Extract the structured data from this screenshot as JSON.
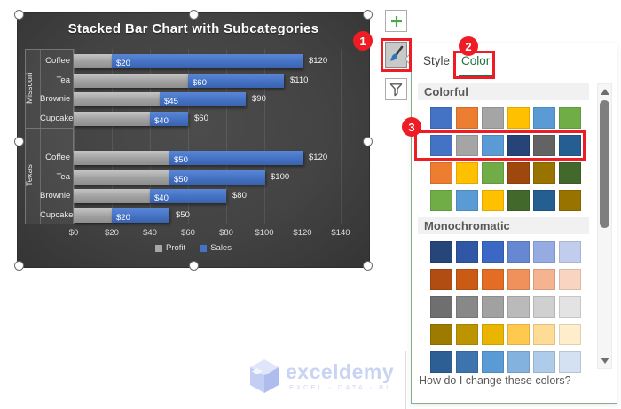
{
  "chart": {
    "title": "Stacked Bar Chart with Subcategories",
    "x_ticks": [
      "$0",
      "$20",
      "$40",
      "$60",
      "$80",
      "$100",
      "$120",
      "$140"
    ],
    "groups": [
      {
        "state": "Missouri",
        "rows": [
          {
            "item": "Coffee",
            "profit": 20,
            "sales": 100,
            "total": 120,
            "segment_label": "$20",
            "total_label": "$120"
          },
          {
            "item": "Tea",
            "profit": 60,
            "sales": 50,
            "total": 110,
            "segment_label": "$60",
            "total_label": "$110"
          },
          {
            "item": "Brownie",
            "profit": 45,
            "sales": 45,
            "total": 90,
            "segment_label": "$45",
            "total_label": "$90"
          },
          {
            "item": "Cupcake",
            "profit": 40,
            "sales": 20,
            "total": 60,
            "segment_label": "$40",
            "total_label": "$60"
          }
        ]
      },
      {
        "state": "Texas",
        "rows": [
          {
            "item": "Coffee",
            "profit": 50,
            "sales": 70,
            "total": 120,
            "segment_label": "$50",
            "total_label": "$120"
          },
          {
            "item": "Tea",
            "profit": 50,
            "sales": 50,
            "total": 100,
            "segment_label": "$50",
            "total_label": "$100"
          },
          {
            "item": "Brownie",
            "profit": 40,
            "sales": 40,
            "total": 80,
            "segment_label": "$40",
            "total_label": "$80"
          },
          {
            "item": "Cupcake",
            "profit": 20,
            "sales": 30,
            "total": 50,
            "segment_label": "$20",
            "total_label": "$50"
          }
        ]
      }
    ],
    "legend": [
      {
        "name": "Profit",
        "color": "#A6A6A6"
      },
      {
        "name": "Sales",
        "color": "#4472C4"
      }
    ]
  },
  "chart_data": {
    "type": "bar",
    "orientation": "horizontal",
    "stacked": true,
    "title": "Stacked Bar Chart with Subcategories",
    "categories": [
      "Missouri Coffee",
      "Missouri Tea",
      "Missouri Brownie",
      "Missouri Cupcake",
      "Texas Coffee",
      "Texas Tea",
      "Texas Brownie",
      "Texas Cupcake"
    ],
    "series": [
      {
        "name": "Profit",
        "color": "#A6A6A6",
        "values": [
          20,
          60,
          45,
          40,
          50,
          50,
          40,
          20
        ]
      },
      {
        "name": "Sales",
        "color": "#4472C4",
        "values": [
          100,
          50,
          45,
          20,
          70,
          50,
          40,
          30
        ]
      }
    ],
    "totals": [
      120,
      110,
      90,
      60,
      120,
      100,
      80,
      50
    ],
    "xlim": [
      0,
      140
    ],
    "x_tick_labels": [
      "$0",
      "$20",
      "$40",
      "$60",
      "$80",
      "$100",
      "$120",
      "$140"
    ],
    "legend_position": "bottom",
    "grid": "vertical"
  },
  "panel": {
    "tabs": [
      {
        "label": "Style",
        "active": false
      },
      {
        "label": "Color",
        "active": true
      }
    ],
    "sections": [
      {
        "title": "Colorful",
        "rows": [
          [
            "#4472C4",
            "#ED7D31",
            "#A5A5A5",
            "#FFC000",
            "#5B9BD5",
            "#70AD47"
          ],
          [
            "#4472C4",
            "#A5A5A5",
            "#5B9BD5",
            "#264478",
            "#636363",
            "#255E91"
          ],
          [
            "#ED7D31",
            "#FFC000",
            "#70AD47",
            "#9E480E",
            "#997300",
            "#43682B"
          ],
          [
            "#70AD47",
            "#5B9BD5",
            "#FFC000",
            "#43682B",
            "#255E91",
            "#997300"
          ]
        ]
      },
      {
        "title": "Monochromatic",
        "rows": [
          [
            "#264579",
            "#2F57A4",
            "#3A68C4",
            "#6687D2",
            "#96ABE1",
            "#C2CDEE"
          ],
          [
            "#B14D12",
            "#CA5A14",
            "#E46C23",
            "#F0915C",
            "#F4B490",
            "#F9D5C1"
          ],
          [
            "#6F6F6F",
            "#888888",
            "#A1A1A1",
            "#BABABA",
            "#D0D0D0",
            "#E3E3E3"
          ],
          [
            "#9C7B00",
            "#BC9400",
            "#E9B500",
            "#FFC94E",
            "#FFDC96",
            "#FFEDCB"
          ],
          [
            "#2E5F94",
            "#3E74AE",
            "#5B9BD5",
            "#84B2DF",
            "#AFCBEA",
            "#D3E1F3"
          ]
        ]
      }
    ],
    "footer_link": "How do I change these colors?",
    "accent_green": "#217346"
  },
  "annotations": {
    "badge1": "1",
    "badge2": "2",
    "badge3": "3",
    "highlight_color": "#EE1C25"
  },
  "watermark": {
    "brand": "exceldemy",
    "tagline": "EXCEL - DATA - BI"
  }
}
